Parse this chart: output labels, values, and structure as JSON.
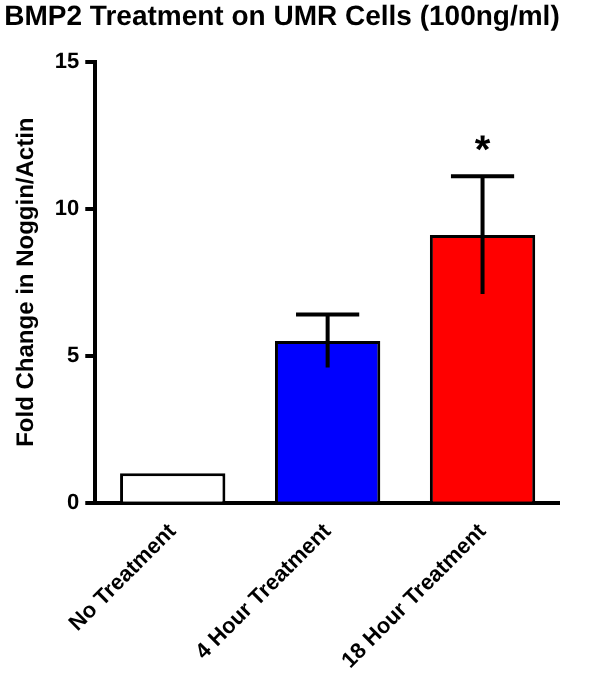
{
  "chart_data": {
    "type": "bar",
    "title": "BMP2 Treatment on UMR Cells (100ng/ml)",
    "ylabel": "Fold Change in Noggin/Actin",
    "categories": [
      "No Treatment",
      "4 Hour Treatment",
      "18 Hour Treatment"
    ],
    "values": [
      1.0,
      5.5,
      9.1
    ],
    "colors": [
      "#ffffff",
      "#0000ff",
      "#ff0000"
    ],
    "errors": [
      null,
      0.9,
      2.0
    ],
    "ylim": [
      0,
      15
    ],
    "yticks": [
      0,
      5,
      10,
      15
    ],
    "grid": false,
    "legend": false,
    "annotations": [
      {
        "text": "*",
        "x": "18 Hour Treatment",
        "y": 11.1
      }
    ]
  }
}
